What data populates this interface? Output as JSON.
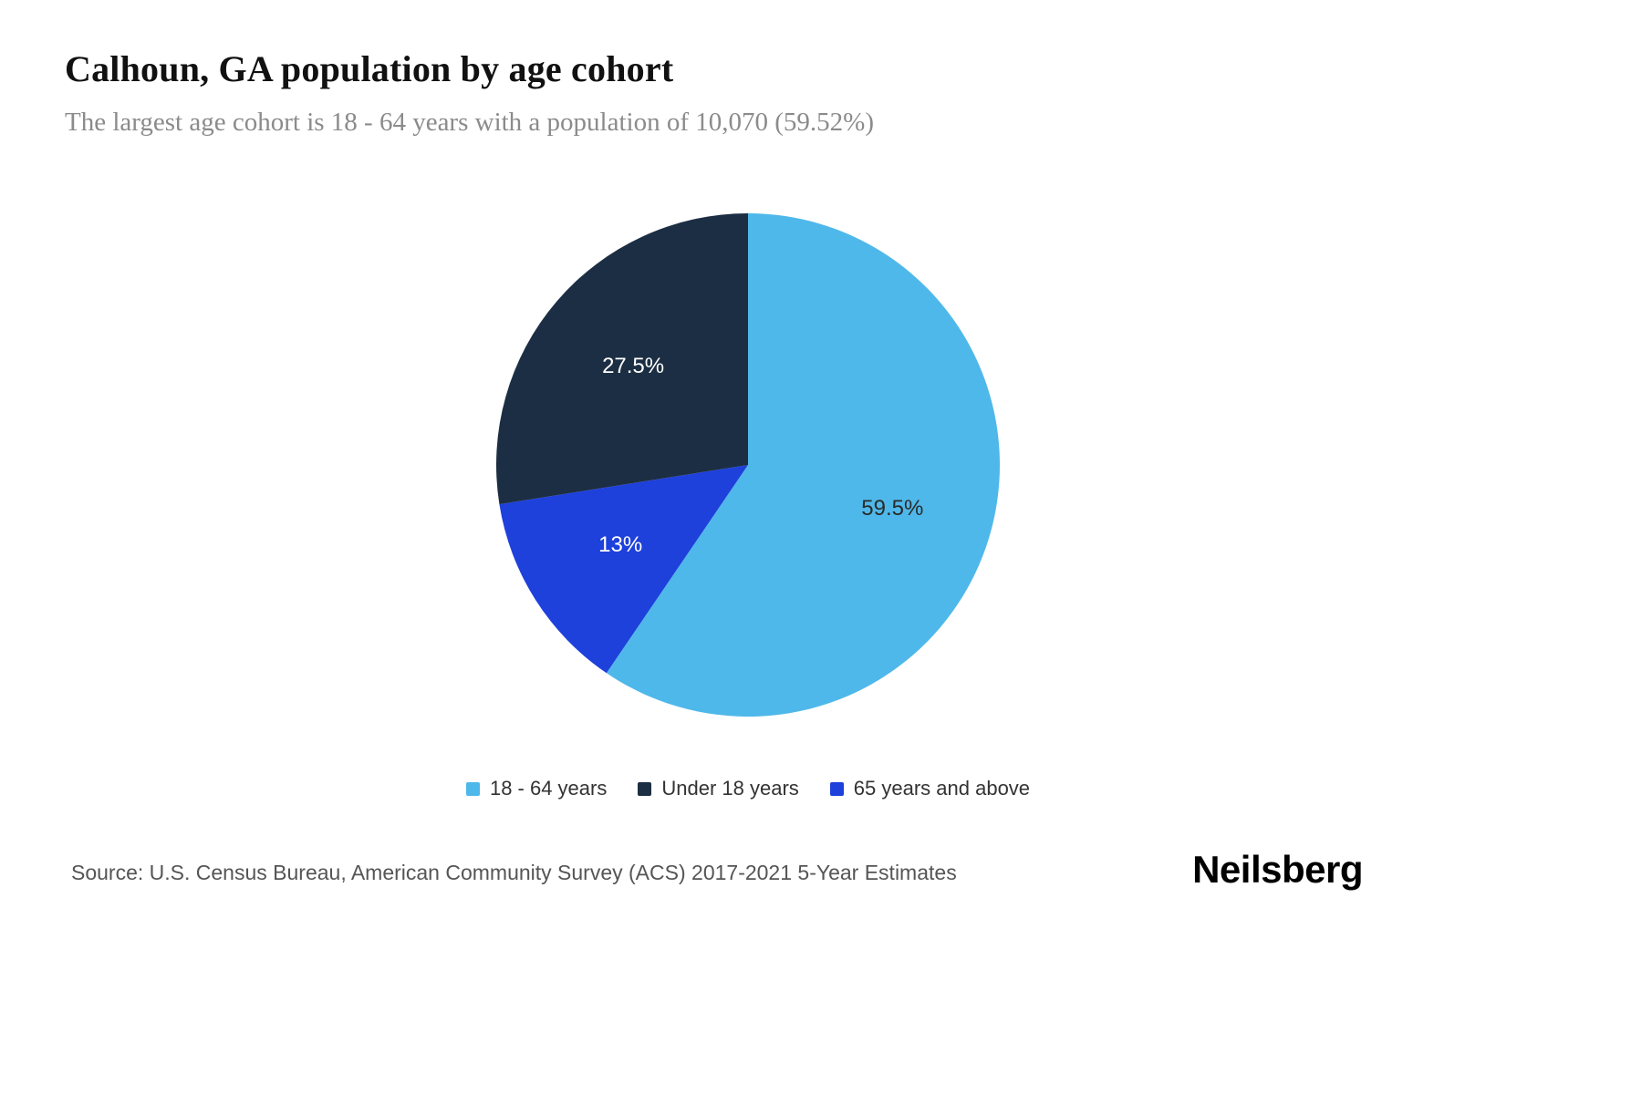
{
  "header": {
    "title": "Calhoun, GA population by age cohort",
    "subtitle": "The largest age cohort is 18 - 64 years with a population of 10,070 (59.52%)"
  },
  "chart_data": {
    "type": "pie",
    "title": "Calhoun, GA population by age cohort",
    "subtitle": "The largest age cohort is 18 - 64 years with a population of 10,070 (59.52%)",
    "start_angle_deg": 0,
    "direction": "clockwise",
    "slices": [
      {
        "name": "18 - 64 years",
        "value": 59.5,
        "display_label": "59.5%",
        "color": "#4fb8ea",
        "label_color": "#2a2a2a"
      },
      {
        "name": "65 years and above",
        "value": 13.0,
        "display_label": "13%",
        "color": "#1e40db",
        "label_color": "#ffffff"
      },
      {
        "name": "Under 18 years",
        "value": 27.5,
        "display_label": "27.5%",
        "color": "#1c2e43",
        "label_color": "#ffffff"
      }
    ],
    "legend": [
      {
        "label": "18 - 64 years",
        "color": "#4fb8ea"
      },
      {
        "label": "Under 18 years",
        "color": "#1c2e43"
      },
      {
        "label": "65 years and above",
        "color": "#1e40db"
      }
    ],
    "largest_cohort": {
      "name": "18 - 64 years",
      "population": "10,070",
      "percent": "59.52%"
    }
  },
  "footer": {
    "source": "Source: U.S. Census Bureau, American Community Survey (ACS) 2017-2021 5-Year Estimates",
    "brand": "Neilsberg"
  }
}
